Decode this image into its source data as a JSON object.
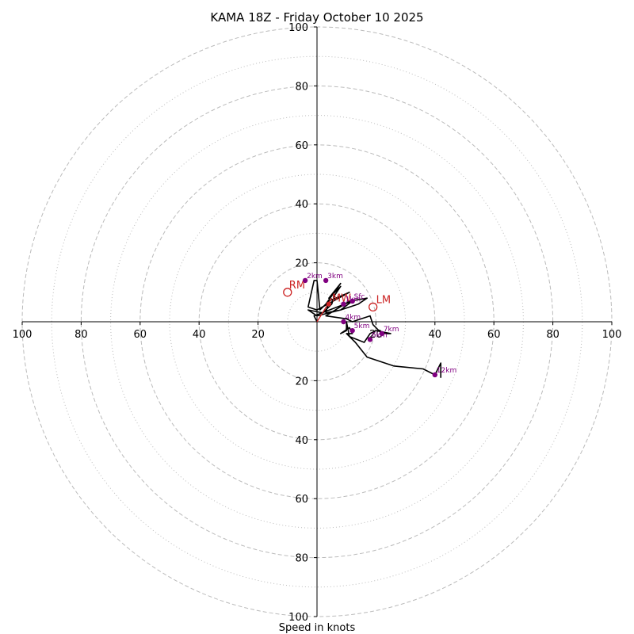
{
  "chart_data": {
    "type": "hodograph",
    "title": "KAMA 18Z - Friday October 10 2025",
    "xlabel": "Speed in knots",
    "units": "knots",
    "range": [
      -100,
      100
    ],
    "major_rings": [
      20,
      40,
      60,
      80,
      100
    ],
    "minor_rings": [
      10,
      30,
      50,
      70,
      90
    ],
    "x_ticks": [
      {
        "value": -100,
        "label": "100"
      },
      {
        "value": -80,
        "label": "80"
      },
      {
        "value": -60,
        "label": "60"
      },
      {
        "value": -40,
        "label": "40"
      },
      {
        "value": -20,
        "label": "20"
      },
      {
        "value": 20,
        "label": "20"
      },
      {
        "value": 40,
        "label": "40"
      },
      {
        "value": 60,
        "label": "60"
      },
      {
        "value": 80,
        "label": "80"
      },
      {
        "value": 100,
        "label": "100"
      }
    ],
    "y_ticks": [
      {
        "value": 100,
        "label": "100"
      },
      {
        "value": 80,
        "label": "80"
      },
      {
        "value": 60,
        "label": "60"
      },
      {
        "value": 40,
        "label": "40"
      },
      {
        "value": 20,
        "label": "20"
      },
      {
        "value": -20,
        "label": "20"
      },
      {
        "value": -40,
        "label": "40"
      },
      {
        "value": -60,
        "label": "60"
      },
      {
        "value": -80,
        "label": "80"
      },
      {
        "value": -100,
        "label": "100"
      }
    ],
    "trace": [
      [
        0,
        0
      ],
      [
        -1,
        2
      ],
      [
        12,
        7
      ],
      [
        8,
        4
      ],
      [
        3,
        3
      ],
      [
        4,
        7
      ],
      [
        11,
        10
      ],
      [
        0,
        4
      ],
      [
        -3,
        5
      ],
      [
        -1,
        14
      ],
      [
        0,
        14
      ],
      [
        1,
        4
      ],
      [
        3,
        6
      ],
      [
        8,
        13
      ],
      [
        4,
        8
      ],
      [
        8,
        12
      ],
      [
        6,
        9
      ],
      [
        5,
        6
      ],
      [
        2,
        3
      ],
      [
        -3,
        4
      ],
      [
        0,
        2
      ],
      [
        8,
        4
      ],
      [
        14,
        6
      ],
      [
        17,
        8
      ],
      [
        11,
        7
      ],
      [
        3,
        2
      ],
      [
        10,
        1
      ],
      [
        12,
        0
      ],
      [
        15,
        1
      ],
      [
        18,
        2
      ],
      [
        19,
        -1
      ],
      [
        22,
        -4
      ],
      [
        25,
        -4
      ],
      [
        20,
        -3
      ],
      [
        18,
        -4
      ],
      [
        16,
        -7
      ],
      [
        11,
        -5
      ],
      [
        10,
        0
      ],
      [
        10,
        -3
      ],
      [
        8,
        -4
      ],
      [
        11,
        -2
      ],
      [
        12,
        -4
      ],
      [
        10,
        -4
      ],
      [
        13,
        -7
      ],
      [
        17,
        -12
      ],
      [
        26,
        -15
      ],
      [
        36,
        -16
      ],
      [
        40,
        -18
      ],
      [
        42,
        -14
      ],
      [
        42,
        -19
      ]
    ],
    "height_markers": [
      {
        "label": "Sfc",
        "u": 12,
        "v": 7
      },
      {
        "label": "1km",
        "u": 9,
        "v": 6
      },
      {
        "label": "2km",
        "u": -4,
        "v": 14
      },
      {
        "label": "3km",
        "u": 3,
        "v": 14
      },
      {
        "label": "4km",
        "u": 9,
        "v": 0
      },
      {
        "label": "5km",
        "u": 12,
        "v": -3
      },
      {
        "label": "6km",
        "u": 18,
        "v": -6
      },
      {
        "label": "7km",
        "u": 22,
        "v": -4
      },
      {
        "label": "12km",
        "u": 40,
        "v": -18
      }
    ],
    "motion_markers": [
      {
        "label": "RM",
        "u": -10,
        "v": 10
      },
      {
        "label": "LM",
        "u": 19,
        "v": 5
      },
      {
        "label": "MW",
        "u": 4,
        "v": 6
      }
    ],
    "motion_vector": [
      {
        "u": 0,
        "v": 0
      },
      {
        "u": 5,
        "v": 8
      }
    ],
    "colors": {
      "trace": "#000000",
      "markers": "#800080",
      "motion": "#cc2222",
      "rings": "#bbbbbb",
      "axes": "#000000"
    }
  }
}
